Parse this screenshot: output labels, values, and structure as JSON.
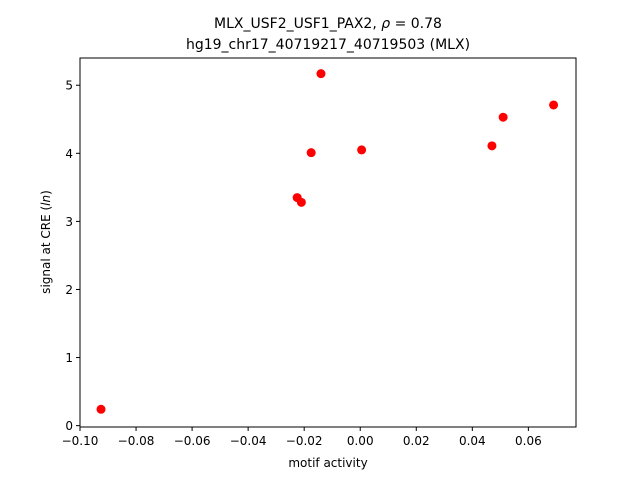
{
  "chart_data": {
    "type": "scatter",
    "title_line1_prefix": "MLX_USF2_USF1_PAX2, ",
    "title_rho_symbol": "ρ",
    "title_line1_suffix": " = 0.78",
    "title_line2": "hg19_chr17_40719217_40719503 (MLX)",
    "xlabel": "motif activity",
    "ylabel_prefix": "signal at CRE (",
    "ylabel_italic": "ln",
    "ylabel_suffix": ")",
    "xlim": [
      -0.1,
      0.077
    ],
    "ylim": [
      -0.02,
      5.4
    ],
    "xticks": [
      -0.1,
      -0.08,
      -0.06,
      -0.04,
      -0.02,
      0.0,
      0.02,
      0.04,
      0.06
    ],
    "xtick_labels": [
      "−0.10",
      "−0.08",
      "−0.06",
      "−0.04",
      "−0.02",
      "0.00",
      "0.02",
      "0.04",
      "0.06"
    ],
    "yticks": [
      0,
      1,
      2,
      3,
      4,
      5
    ],
    "ytick_labels": [
      "0",
      "1",
      "2",
      "3",
      "4",
      "5"
    ],
    "grid": false,
    "marker_color": "#ff0000",
    "points": [
      {
        "x": -0.0925,
        "y": 0.24
      },
      {
        "x": -0.0225,
        "y": 3.35
      },
      {
        "x": -0.021,
        "y": 3.28
      },
      {
        "x": -0.0175,
        "y": 4.01
      },
      {
        "x": -0.014,
        "y": 5.17
      },
      {
        "x": 0.0005,
        "y": 4.05
      },
      {
        "x": 0.047,
        "y": 4.11
      },
      {
        "x": 0.051,
        "y": 4.53
      },
      {
        "x": 0.069,
        "y": 4.71
      }
    ]
  }
}
